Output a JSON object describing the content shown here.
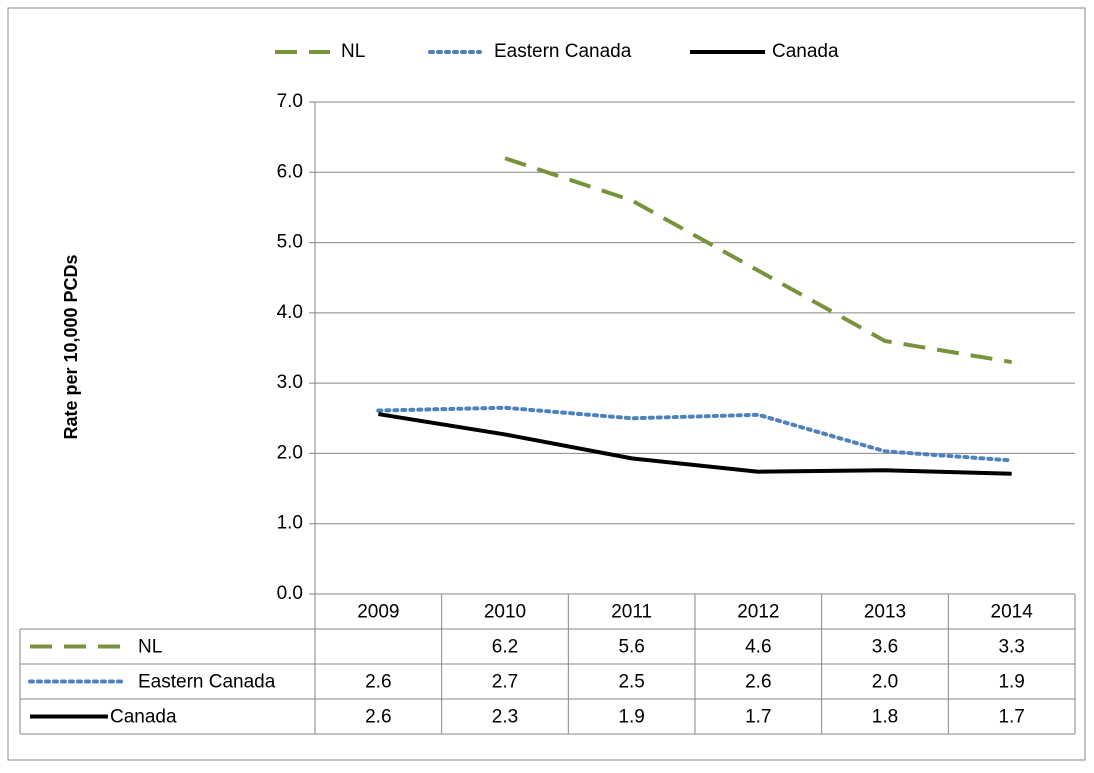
{
  "chart_data": {
    "type": "line",
    "y_label": "Rate per 10,000 PCDs",
    "categories": [
      "2009",
      "2010",
      "2011",
      "2012",
      "2013",
      "2014"
    ],
    "ylim": [
      0,
      7
    ],
    "yticks": [
      {
        "value": 0,
        "label": "0.0"
      },
      {
        "value": 1,
        "label": "1.0"
      },
      {
        "value": 2,
        "label": "2.0"
      },
      {
        "value": 3,
        "label": "3.0"
      },
      {
        "value": 4,
        "label": "4.0"
      },
      {
        "value": 5,
        "label": "5.0"
      },
      {
        "value": 6,
        "label": "6.0"
      },
      {
        "value": 7,
        "label": "7.0"
      }
    ],
    "grid": true,
    "series": [
      {
        "name": "NL",
        "color": "#77933C",
        "dash": "dashed",
        "values": [
          null,
          6.2,
          5.6,
          4.6,
          3.6,
          3.3
        ],
        "value_labels": [
          null,
          "6.2",
          "5.6",
          "4.6",
          "3.6",
          "3.3"
        ]
      },
      {
        "name": "Eastern Canada",
        "color": "#4F81BD",
        "dash": "dotted",
        "values": [
          2.61,
          2.65,
          2.5,
          2.55,
          2.03,
          1.9
        ],
        "value_labels": [
          "2.6",
          "2.7",
          "2.5",
          "2.6",
          "2.0",
          "1.9"
        ]
      },
      {
        "name": "Canada",
        "color": "#000000",
        "dash": "solid",
        "values": [
          2.56,
          2.27,
          1.93,
          1.74,
          1.76,
          1.71
        ],
        "value_labels": [
          "2.6",
          "2.3",
          "1.9",
          "1.7",
          "1.8",
          "1.7"
        ]
      }
    ]
  }
}
